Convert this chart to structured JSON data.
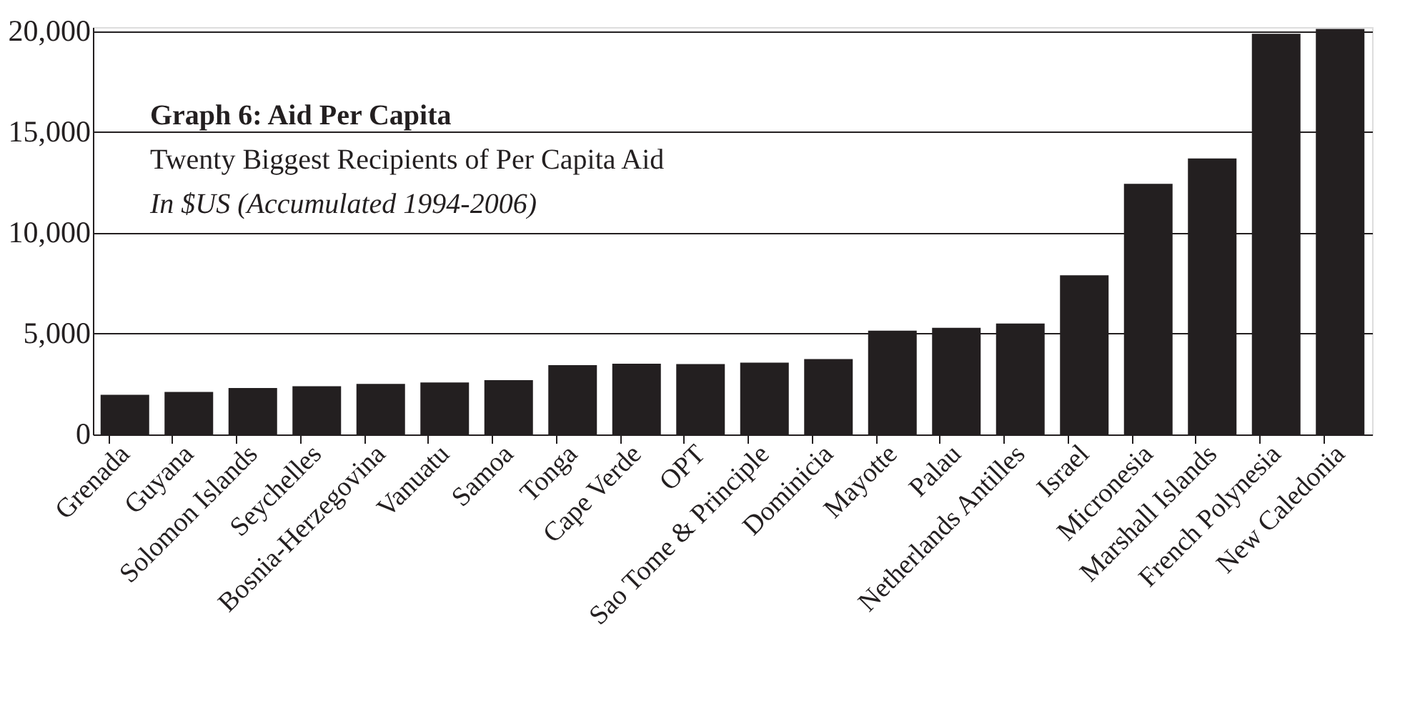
{
  "chart_data": {
    "type": "bar",
    "title": "Graph 6: Aid Per Capita",
    "subtitle": "Twenty Biggest Recipients of Per Capita Aid",
    "annotations": [
      "In $US (Accumulated 1994-2006)"
    ],
    "categories": [
      "Grenada",
      "Guyana",
      "Solomon Islands",
      "Seychelles",
      "Bosnia-Herzegovina",
      "Vanuatu",
      "Samoa",
      "Tonga",
      "Cape Verde",
      "OPT",
      "Sao Tome & Principle",
      "Dominicia",
      "Mayotte",
      "Palau",
      "Netherlands Antilles",
      "Israel",
      "Micronesia",
      "Marshall Islands",
      "French Polynesia",
      "New Caledonia"
    ],
    "values": [
      1970,
      2110,
      2300,
      2390,
      2510,
      2580,
      2690,
      3440,
      3510,
      3490,
      3560,
      3740,
      5150,
      5290,
      5500,
      7890,
      12430,
      13690,
      19870,
      20110
    ],
    "color": "#231f20",
    "ylim": [
      0,
      20200
    ],
    "yticks": [
      0,
      {
        "value": 5000,
        "label": "5,000"
      },
      {
        "value": 10000,
        "label": "10,000"
      },
      {
        "value": 15000,
        "label": "15,000"
      },
      {
        "value": 20000,
        "label": "20,000"
      }
    ],
    "grid": "y"
  }
}
